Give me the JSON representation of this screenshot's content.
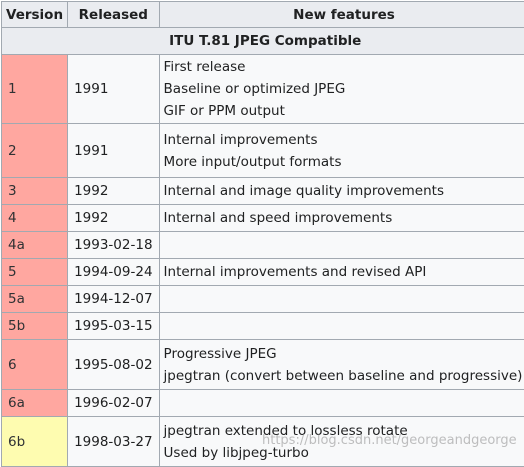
{
  "headers": {
    "version": "Version",
    "released": "Released",
    "features": "New features"
  },
  "section_title": "ITU T.81 JPEG Compatible",
  "rows": [
    {
      "version": "1",
      "released": "1991",
      "features": [
        "First release",
        "Baseline or optimized JPEG",
        "GIF or PPM output"
      ],
      "status": "old"
    },
    {
      "version": "2",
      "released": "1991",
      "features": [
        "Internal improvements",
        "More input/output formats"
      ],
      "status": "old"
    },
    {
      "version": "3",
      "released": "1992",
      "features": [
        "Internal and image quality improvements"
      ],
      "status": "old"
    },
    {
      "version": "4",
      "released": "1992",
      "features": [
        "Internal and speed improvements"
      ],
      "status": "old"
    },
    {
      "version": "4a",
      "released": "1993-02-18",
      "features": [],
      "status": "old"
    },
    {
      "version": "5",
      "released": "1994-09-24",
      "features": [
        "Internal improvements and revised API"
      ],
      "status": "old"
    },
    {
      "version": "5a",
      "released": "1994-12-07",
      "features": [],
      "status": "old"
    },
    {
      "version": "5b",
      "released": "1995-03-15",
      "features": [],
      "status": "old"
    },
    {
      "version": "6",
      "released": "1995-08-02",
      "features": [
        "Progressive JPEG",
        "jpegtran (convert between baseline and progressive)"
      ],
      "status": "old"
    },
    {
      "version": "6a",
      "released": "1996-02-07",
      "features": [],
      "status": "old"
    },
    {
      "version": "6b",
      "released": "1998-03-27",
      "features": [
        "jpegtran extended to lossless rotate",
        "Used by libjpeg-turbo"
      ],
      "status": "current"
    }
  ],
  "watermark": "https://blog.csdn.net/georgeandgeorge",
  "colors": {
    "old_version": "#ffa7a0",
    "current_version": "#fefcb0",
    "header_bg": "#eaecf0",
    "border": "#a2a9b1"
  }
}
